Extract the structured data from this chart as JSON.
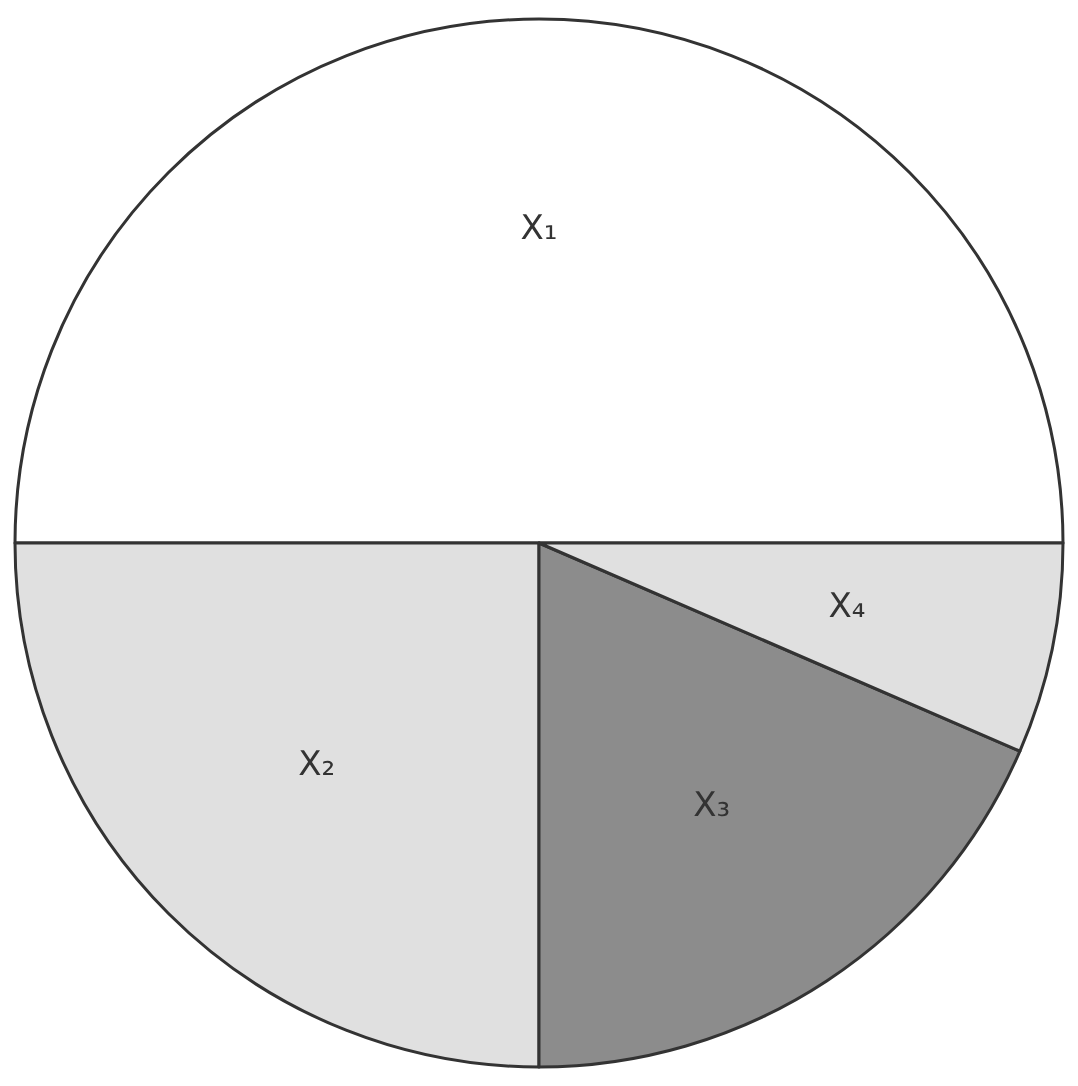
{
  "chart_data": {
    "type": "pie",
    "categories": [
      "X₁",
      "X₂",
      "X₃",
      "X₄"
    ],
    "values": [
      50,
      25,
      18.5,
      6.5
    ],
    "colors": [
      "#ffffff",
      "#e0e0e0",
      "#8c8c8c",
      "#e0e0e0"
    ]
  }
}
